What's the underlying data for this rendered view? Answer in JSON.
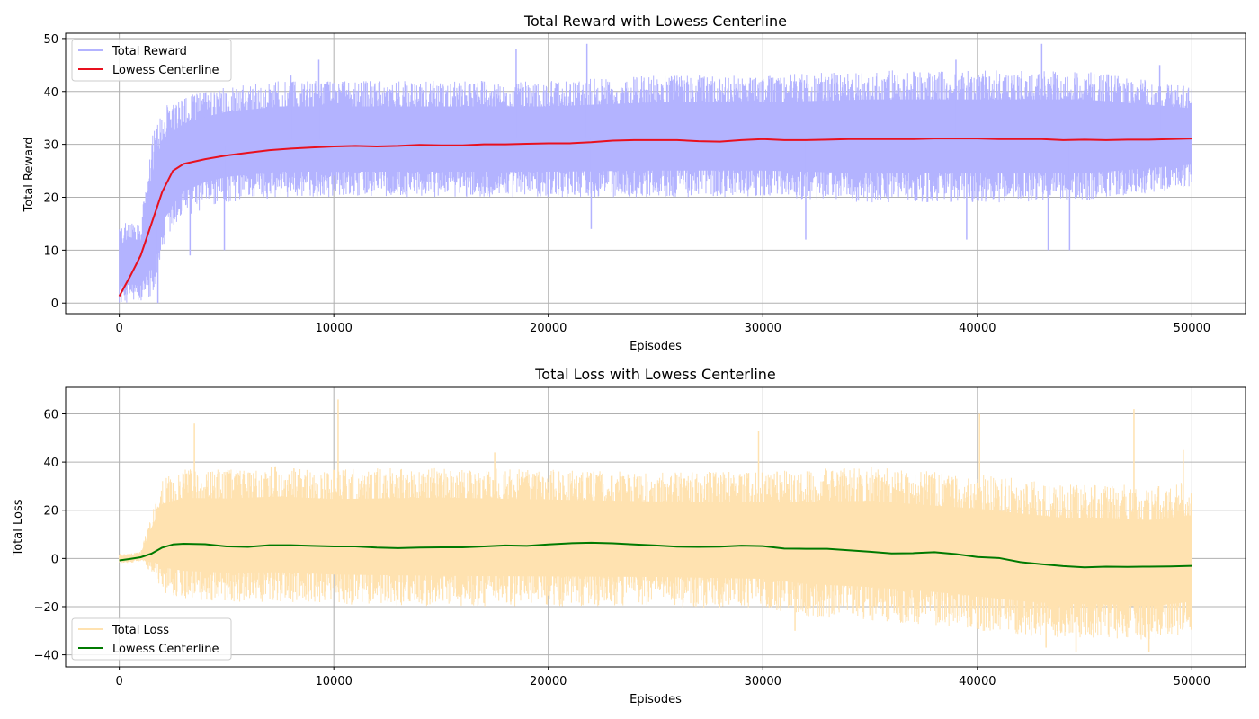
{
  "chart_data": [
    {
      "type": "line",
      "title": "Total Reward with Lowess Centerline",
      "xlabel": "Episodes",
      "ylabel": "Total Reward",
      "xlim": [
        -2500,
        52500
      ],
      "ylim": [
        -2,
        51
      ],
      "xticks": [
        0,
        10000,
        20000,
        30000,
        40000,
        50000
      ],
      "xtick_labels": [
        "0",
        "10000",
        "20000",
        "30000",
        "40000",
        "50000"
      ],
      "yticks": [
        0,
        10,
        20,
        30,
        40,
        50
      ],
      "ytick_labels": [
        "0",
        "10",
        "20",
        "30",
        "40",
        "50"
      ],
      "grid": true,
      "legend_position": "upper-left",
      "series": [
        {
          "name": "Total Reward",
          "color": "#b3b3ff",
          "style": "noisy-band",
          "x": [
            0,
            500,
            1000,
            1500,
            2000,
            2500,
            3000,
            4000,
            5000,
            7500,
            10000,
            15000,
            20000,
            25000,
            30000,
            35000,
            40000,
            45000,
            50000
          ],
          "lower": [
            0,
            0,
            0,
            0,
            9,
            13,
            16,
            18,
            19,
            20,
            20,
            20,
            20,
            20,
            20,
            19,
            19,
            19,
            22
          ],
          "upper": [
            14,
            16,
            15,
            31,
            37,
            38,
            39,
            40,
            41,
            42,
            42,
            42,
            42,
            43,
            43,
            44,
            44,
            44,
            41
          ],
          "outliers": [
            [
              1800,
              0
            ],
            [
              3300,
              9
            ],
            [
              4900,
              10
            ],
            [
              8000,
              43
            ],
            [
              9300,
              46
            ],
            [
              18500,
              48
            ],
            [
              21800,
              49
            ],
            [
              22000,
              14
            ],
            [
              32000,
              12
            ],
            [
              39000,
              46
            ],
            [
              39500,
              12
            ],
            [
              43000,
              49
            ],
            [
              43300,
              10
            ],
            [
              44300,
              10
            ],
            [
              48500,
              45
            ]
          ]
        },
        {
          "name": "Lowess Centerline",
          "color": "#e8101e",
          "style": "line",
          "x": [
            0,
            500,
            1000,
            1500,
            2000,
            2500,
            3000,
            4000,
            5000,
            6000,
            7000,
            8000,
            9000,
            10000,
            11000,
            12000,
            13000,
            14000,
            15000,
            16000,
            17000,
            18000,
            19000,
            20000,
            21000,
            22000,
            23000,
            24000,
            25000,
            26000,
            27000,
            28000,
            29000,
            30000,
            31000,
            32000,
            33000,
            34000,
            35000,
            36000,
            37000,
            38000,
            39000,
            40000,
            41000,
            42000,
            43000,
            44000,
            45000,
            46000,
            47000,
            48000,
            49000,
            50000
          ],
          "y": [
            1.3,
            5,
            9,
            15,
            21,
            25,
            26.3,
            27.2,
            27.9,
            28.4,
            28.9,
            29.2,
            29.4,
            29.6,
            29.7,
            29.6,
            29.7,
            29.9,
            29.8,
            29.8,
            30.0,
            30.0,
            30.1,
            30.2,
            30.2,
            30.4,
            30.7,
            30.8,
            30.8,
            30.8,
            30.6,
            30.5,
            30.8,
            31.0,
            30.8,
            30.8,
            30.9,
            31.0,
            31.0,
            31.0,
            31.0,
            31.1,
            31.1,
            31.1,
            31.0,
            31.0,
            31.0,
            30.8,
            30.9,
            30.8,
            30.9,
            30.9,
            31.0,
            31.1
          ]
        }
      ]
    },
    {
      "type": "line",
      "title": "Total Loss with Lowess Centerline",
      "xlabel": "Episodes",
      "ylabel": "Total Loss",
      "xlim": [
        -2500,
        52500
      ],
      "ylim": [
        -45,
        71
      ],
      "xticks": [
        0,
        10000,
        20000,
        30000,
        40000,
        50000
      ],
      "xtick_labels": [
        "0",
        "10000",
        "20000",
        "30000",
        "40000",
        "50000"
      ],
      "yticks": [
        -40,
        -20,
        0,
        20,
        40,
        60
      ],
      "ytick_labels": [
        "−40",
        "−20",
        "0",
        "20",
        "40",
        "60"
      ],
      "grid": true,
      "legend_position": "lower-left",
      "series": [
        {
          "name": "Total Loss",
          "color": "#ffe2b0",
          "style": "noisy-band",
          "x": [
            0,
            500,
            1000,
            1500,
            2000,
            3000,
            5000,
            7500,
            10000,
            15000,
            20000,
            25000,
            30000,
            32000,
            35000,
            38000,
            40000,
            42000,
            44000,
            46000,
            48000,
            50000
          ],
          "lower": [
            -2,
            -2,
            -1,
            -6,
            -14,
            -17,
            -18,
            -18,
            -19,
            -20,
            -20,
            -20,
            -21,
            -24,
            -26,
            -28,
            -30,
            -32,
            -33,
            -33,
            -34,
            -32
          ],
          "upper": [
            2,
            2,
            3,
            18,
            33,
            37,
            37,
            38,
            37,
            38,
            37,
            36,
            36,
            37,
            38,
            36,
            35,
            33,
            31,
            31,
            30,
            32
          ],
          "outliers": [
            [
              3500,
              56
            ],
            [
              10200,
              66
            ],
            [
              17500,
              44
            ],
            [
              29800,
              53
            ],
            [
              31500,
              -30
            ],
            [
              40100,
              60
            ],
            [
              43200,
              -37
            ],
            [
              44600,
              -39
            ],
            [
              47300,
              62
            ],
            [
              48000,
              -39
            ],
            [
              49600,
              45
            ]
          ]
        },
        {
          "name": "Lowess Centerline",
          "color": "#007a00",
          "style": "line",
          "x": [
            0,
            500,
            1000,
            1500,
            2000,
            2500,
            3000,
            4000,
            5000,
            6000,
            7000,
            8000,
            9000,
            10000,
            11000,
            12000,
            13000,
            14000,
            15000,
            16000,
            17000,
            18000,
            19000,
            20000,
            21000,
            22000,
            23000,
            24000,
            25000,
            26000,
            27000,
            28000,
            29000,
            30000,
            31000,
            32000,
            33000,
            34000,
            35000,
            36000,
            37000,
            38000,
            39000,
            40000,
            41000,
            42000,
            43000,
            44000,
            45000,
            46000,
            47000,
            48000,
            49000,
            50000
          ],
          "y": [
            -0.8,
            -0.2,
            0.5,
            2,
            4.5,
            5.8,
            6.1,
            5.9,
            5.0,
            4.8,
            5.5,
            5.5,
            5.2,
            5.0,
            5.0,
            4.5,
            4.3,
            4.5,
            4.6,
            4.6,
            5.0,
            5.4,
            5.2,
            5.8,
            6.3,
            6.5,
            6.3,
            5.8,
            5.4,
            4.9,
            4.8,
            4.9,
            5.3,
            5.1,
            4.1,
            4.0,
            4.0,
            3.4,
            2.8,
            2.1,
            2.2,
            2.6,
            1.8,
            0.6,
            0.2,
            -1.5,
            -2.4,
            -3.2,
            -3.7,
            -3.4,
            -3.5,
            -3.4,
            -3.3,
            -3.1
          ]
        }
      ]
    }
  ]
}
